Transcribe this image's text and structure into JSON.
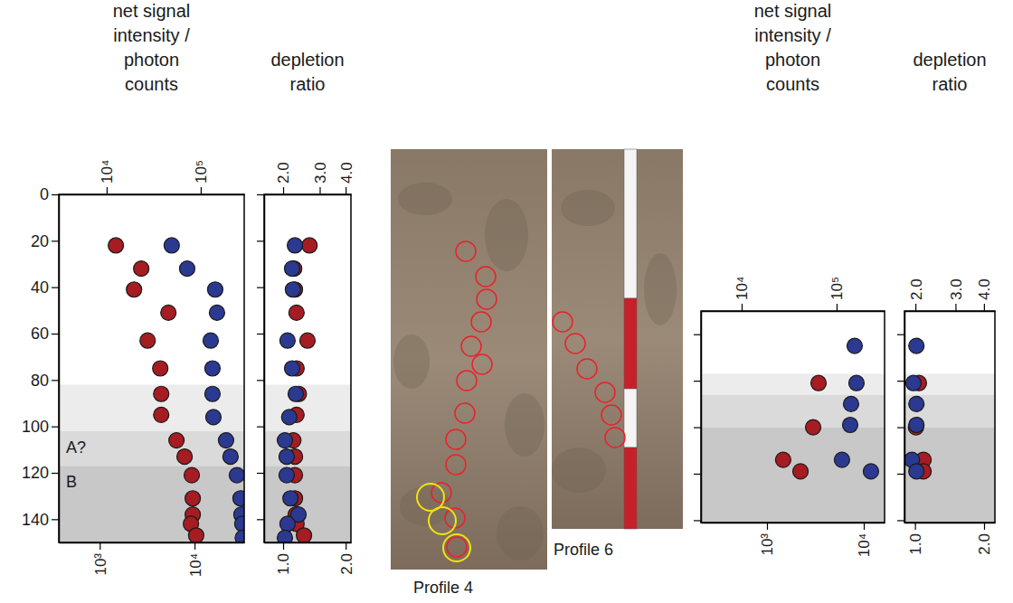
{
  "chart_data": [
    {
      "type": "scatter",
      "x_label": "net signal intensity / photon counts",
      "log": "x",
      "xlim": [
        370,
        33400
      ],
      "xticks": [
        {
          "value": 1000,
          "label": "10³"
        },
        {
          "value": 10000,
          "label": "10⁴"
        }
      ],
      "x2lim": [
        3100,
        290000
      ],
      "x2ticks": [
        {
          "value": 10000,
          "label": "10⁴"
        },
        {
          "value": 100000,
          "label": "10⁵"
        }
      ],
      "ylim": [
        0,
        150
      ],
      "yticks": [
        0,
        20,
        40,
        60,
        80,
        100,
        120,
        140
      ],
      "bands": [
        {
          "from": 82,
          "to": 102,
          "color": "#ececec"
        },
        {
          "from": 102,
          "to": 117,
          "color": "#dadada"
        },
        {
          "from": 117,
          "to": 150,
          "color": "#c8c8c8"
        }
      ],
      "annotations": [
        {
          "text": "A?",
          "y": 109
        },
        {
          "text": "B",
          "y": 124
        }
      ],
      "series": [
        {
          "color": "#a51c22",
          "marker": "circle",
          "x": [
            1480,
            2740,
            2300,
            5300,
            3200,
            4350,
            4450,
            4450,
            6450,
            7850,
            9350,
            9570,
            9570,
            9160,
            10400
          ],
          "y": [
            22,
            32,
            41,
            51,
            63,
            75,
            86,
            95,
            106,
            113,
            121,
            131,
            138,
            142,
            147
          ]
        },
        {
          "color": "#2b3990",
          "marker": "circle",
          "axis": "x2",
          "x": [
            49200,
            71800,
            142600,
            149000,
            127700,
            133400,
            133400,
            136500,
            186000,
            207500,
            242500,
            265000,
            271000,
            277000,
            280000
          ],
          "y": [
            22,
            32,
            41,
            51,
            63,
            75,
            86,
            96,
            106,
            113,
            121,
            131,
            138,
            142,
            148
          ]
        }
      ]
    },
    {
      "type": "scatter",
      "x_label": "depletion ratio",
      "log": "x",
      "tick_labels": "x",
      "xlim": [
        0.81,
        2.12
      ],
      "xticks": [
        {
          "value": 1,
          "label": "1.0"
        },
        {
          "value": 2,
          "label": "2.0"
        }
      ],
      "x2lim": [
        1.62,
        4.24
      ],
      "x2ticks": [
        {
          "value": 2,
          "label": "2.0"
        },
        {
          "value": 3,
          "label": "3.0"
        },
        {
          "value": 4,
          "label": "4.0"
        }
      ],
      "ylim": [
        0,
        150
      ],
      "yticks": [
        0,
        20,
        40,
        60,
        80,
        100,
        120,
        140
      ],
      "bands": [
        {
          "from": 82,
          "to": 102,
          "color": "#ececec"
        },
        {
          "from": 102,
          "to": 117,
          "color": "#dadada"
        },
        {
          "from": 117,
          "to": 150,
          "color": "#c8c8c8"
        }
      ],
      "series": [
        {
          "color": "#a51c22",
          "marker": "circle",
          "x": [
            1.34,
            1.13,
            1.14,
            1.16,
            1.31,
            1.16,
            1.19,
            1.16,
            1.12,
            1.14,
            1.14,
            1.14,
            1.15,
            1.16,
            1.26
          ],
          "y": [
            22,
            32,
            41,
            51,
            63,
            75,
            86,
            95,
            106,
            113,
            121,
            131,
            138,
            142,
            147
          ]
        },
        {
          "color": "#2b3990",
          "marker": "circle",
          "axis": "x2",
          "x": [
            2.28,
            2.21,
            2.23,
            2.1,
            2.21,
            2.3,
            2.14,
            2.04,
            2.08,
            2.08,
            2.17,
            2.37,
            2.1,
            2.04
          ],
          "y": [
            22,
            32,
            41,
            63,
            75,
            86,
            96,
            106,
            113,
            121,
            131,
            138,
            142,
            148
          ]
        }
      ]
    },
    {
      "type": "scatter",
      "x_label": "net signal intensity / photon counts",
      "log": "x",
      "tick_labels": "x",
      "xlim": [
        208,
        16400
      ],
      "xticks": [
        {
          "value": 1000,
          "label": "10³"
        },
        {
          "value": 10000,
          "label": "10⁴"
        }
      ],
      "x2lim": [
        3730,
        320000
      ],
      "x2ticks": [
        {
          "value": 10000,
          "label": "10⁴"
        },
        {
          "value": 100000,
          "label": "10⁵"
        }
      ],
      "ylim": [
        50,
        141
      ],
      "yticks": [
        60,
        80,
        100,
        120,
        140
      ],
      "bands": [
        {
          "from": 77,
          "to": 86,
          "color": "#ececec"
        },
        {
          "from": 86,
          "to": 100,
          "color": "#dadada"
        },
        {
          "from": 100,
          "to": 141,
          "color": "#c8c8c8"
        }
      ],
      "series": [
        {
          "color": "#a51c22",
          "marker": "circle",
          "x": [
            3410,
            3000,
            1470,
            2220
          ],
          "y": [
            81,
            100,
            114,
            119
          ]
        },
        {
          "color": "#2b3990",
          "marker": "circle",
          "axis": "x2",
          "x": [
            155000,
            162000,
            142000,
            139000,
            114000,
            230000
          ],
          "y": [
            65,
            81,
            90,
            99,
            114,
            119
          ]
        }
      ]
    },
    {
      "type": "scatter",
      "x_label": "depletion ratio",
      "log": "x",
      "tick_labels": "x",
      "xlim": [
        0.9,
        2.23
      ],
      "xticks": [
        {
          "value": 1,
          "label": "1.0"
        },
        {
          "value": 2,
          "label": "2.0"
        }
      ],
      "x2lim": [
        1.79,
        4.47
      ],
      "x2ticks": [
        {
          "value": 2,
          "label": "2.0"
        },
        {
          "value": 3,
          "label": "3.0"
        },
        {
          "value": 4,
          "label": "4.0"
        }
      ],
      "ylim": [
        50,
        141
      ],
      "yticks": [
        60,
        80,
        100,
        120,
        140
      ],
      "bands": [
        {
          "from": 77,
          "to": 86,
          "color": "#ececec"
        },
        {
          "from": 86,
          "to": 100,
          "color": "#dadada"
        },
        {
          "from": 100,
          "to": 141,
          "color": "#c8c8c8"
        }
      ],
      "series": [
        {
          "color": "#a51c22",
          "marker": "circle",
          "x": [
            1.04,
            1.01,
            1.09,
            1.09
          ],
          "y": [
            81,
            100,
            114,
            119
          ]
        },
        {
          "color": "#2b3990",
          "marker": "circle",
          "axis": "x2",
          "x": [
            2.02,
            1.96,
            2.02,
            2.02,
            1.93,
            2.02
          ],
          "y": [
            65,
            81,
            90,
            99,
            114,
            119
          ]
        }
      ]
    }
  ],
  "photos": [
    {
      "label": "Profile 4"
    },
    {
      "label": "Profile 6"
    }
  ]
}
